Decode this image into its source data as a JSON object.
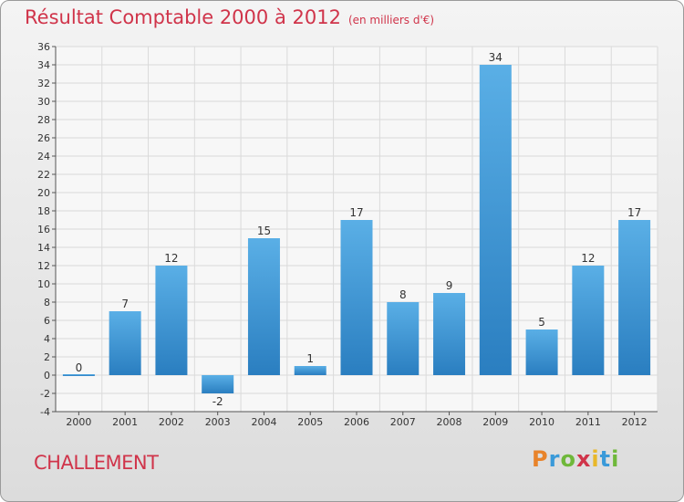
{
  "header": {
    "title": "Résultat Comptable 2000 à 2012",
    "subtitle": "(en milliers d'€)"
  },
  "footer": {
    "commune": "CHALLEMENT",
    "logo_text": "Proxiti"
  },
  "colors": {
    "title": "#d0344a",
    "bar_top": "#5aafe6",
    "bar_bottom": "#2a7ec0"
  },
  "chart_data": {
    "type": "bar",
    "title": "Résultat Comptable 2000 à 2012",
    "subtitle": "(en milliers d'€)",
    "xlabel": "",
    "ylabel": "",
    "categories": [
      "2000",
      "2001",
      "2002",
      "2003",
      "2004",
      "2005",
      "2006",
      "2007",
      "2008",
      "2009",
      "2010",
      "2011",
      "2012"
    ],
    "values": [
      0,
      7,
      12,
      -2,
      15,
      1,
      17,
      8,
      9,
      34,
      5,
      12,
      17
    ],
    "ylim": [
      -4,
      36
    ],
    "yticks": [
      -4,
      -2,
      0,
      2,
      4,
      6,
      8,
      10,
      12,
      14,
      16,
      18,
      20,
      22,
      24,
      26,
      28,
      30,
      32,
      34,
      36
    ],
    "grid": true,
    "legend": "none"
  }
}
